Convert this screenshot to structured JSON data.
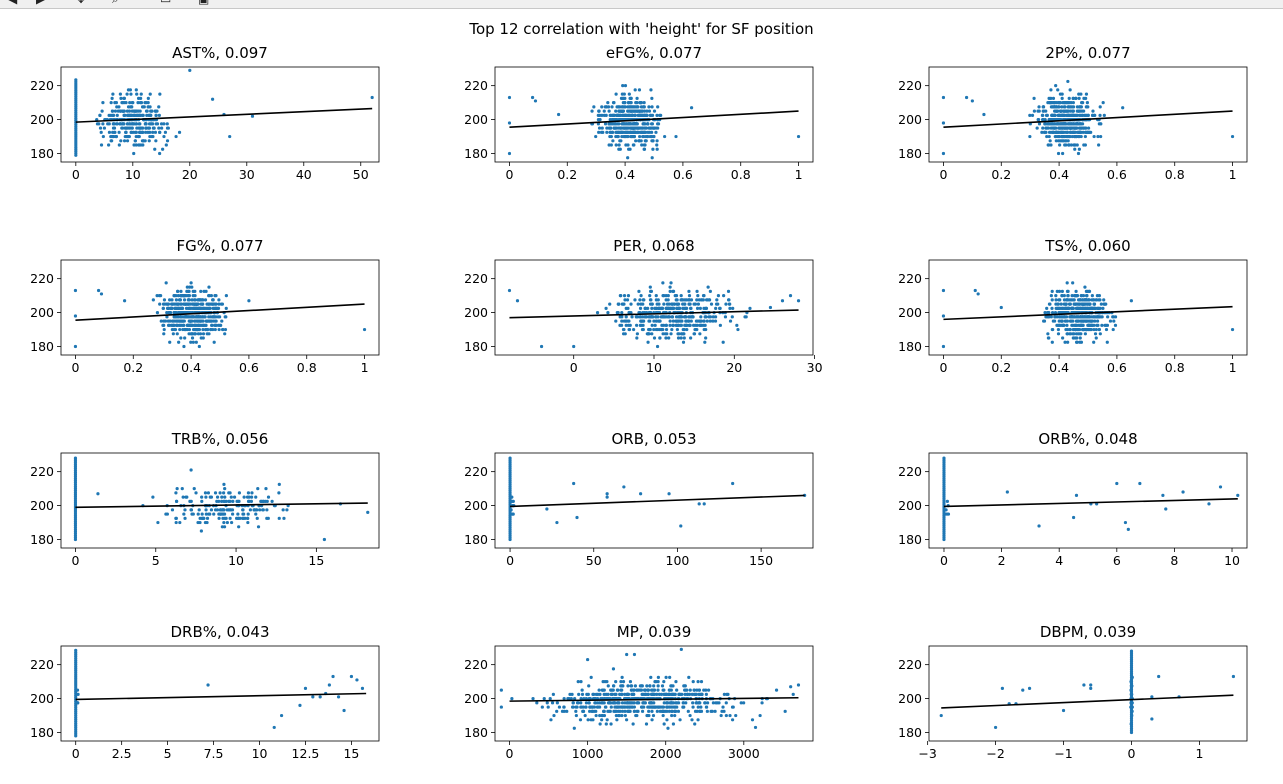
{
  "figure": {
    "suptitle": "Top 12 correlation with 'height' for SF position"
  },
  "toolbar": {
    "icons": [
      "arrow-back-icon",
      "arrow-forward-icon",
      "pan-icon",
      "zoom-icon",
      "subplots-icon",
      "save-icon"
    ]
  },
  "colors": {
    "points": "#1f77b4",
    "fit_line": "#000000"
  },
  "chart_data": [
    {
      "type": "scatter",
      "title": "AST%, 0.097",
      "xlim": [
        -2.6,
        53.2
      ],
      "ylim": [
        175,
        231
      ],
      "xticks": [
        0,
        10,
        20,
        30,
        40,
        50
      ],
      "yticks": [
        180,
        200,
        220
      ],
      "fit": [
        [
          0,
          198.5
        ],
        [
          52,
          206.5
        ]
      ],
      "zero_cluster": {
        "x": 0,
        "y_min": 179,
        "y_max": 224
      },
      "cluster": {
        "x_mean": 10,
        "x_sd": 4.2,
        "y_mean": 199,
        "y_sd": 10,
        "n": 330
      },
      "outliers": [
        [
          20,
          229
        ],
        [
          52,
          213
        ],
        [
          24,
          212
        ],
        [
          26,
          203
        ],
        [
          27,
          190
        ],
        [
          31,
          202
        ]
      ]
    },
    {
      "type": "scatter",
      "title": "eFG%, 0.077",
      "xlim": [
        -0.05,
        1.05
      ],
      "ylim": [
        175,
        231
      ],
      "xticks": [
        0.0,
        0.2,
        0.4,
        0.6,
        0.8,
        1.0
      ],
      "yticks": [
        180,
        200,
        220
      ],
      "fit": [
        [
          0,
          195.5
        ],
        [
          1,
          205
        ]
      ],
      "cluster": {
        "x_mean": 0.42,
        "x_sd": 0.07,
        "y_mean": 199,
        "y_sd": 10,
        "n": 520
      },
      "outliers": [
        [
          0,
          213
        ],
        [
          0,
          180
        ],
        [
          0,
          198
        ],
        [
          1.0,
          190
        ],
        [
          0.08,
          213
        ],
        [
          0.09,
          211
        ],
        [
          0.17,
          203
        ],
        [
          0.63,
          207
        ]
      ]
    },
    {
      "type": "scatter",
      "title": "2P%, 0.077",
      "xlim": [
        -0.05,
        1.05
      ],
      "ylim": [
        175,
        231
      ],
      "xticks": [
        0.0,
        0.2,
        0.4,
        0.6,
        0.8,
        1.0
      ],
      "yticks": [
        180,
        200,
        220
      ],
      "fit": [
        [
          0,
          195.5
        ],
        [
          1,
          205
        ]
      ],
      "cluster": {
        "x_mean": 0.43,
        "x_sd": 0.07,
        "y_mean": 199,
        "y_sd": 10,
        "n": 520
      },
      "outliers": [
        [
          0,
          213
        ],
        [
          0,
          180
        ],
        [
          0,
          198
        ],
        [
          1.0,
          190
        ],
        [
          0.08,
          213
        ],
        [
          0.1,
          211
        ],
        [
          0.14,
          203
        ],
        [
          0.62,
          207
        ]
      ]
    },
    {
      "type": "scatter",
      "title": "FG%, 0.077",
      "xlim": [
        -0.05,
        1.05
      ],
      "ylim": [
        175,
        231
      ],
      "xticks": [
        0.0,
        0.2,
        0.4,
        0.6,
        0.8,
        1.0
      ],
      "yticks": [
        180,
        200,
        220
      ],
      "fit": [
        [
          0,
          195.5
        ],
        [
          1,
          205
        ]
      ],
      "cluster": {
        "x_mean": 0.41,
        "x_sd": 0.07,
        "y_mean": 199,
        "y_sd": 10,
        "n": 520
      },
      "outliers": [
        [
          0,
          213
        ],
        [
          0,
          180
        ],
        [
          0,
          198
        ],
        [
          1.0,
          190
        ],
        [
          0.08,
          213
        ],
        [
          0.09,
          211
        ],
        [
          0.17,
          207
        ],
        [
          0.6,
          207
        ]
      ]
    },
    {
      "type": "scatter",
      "title": "PER, 0.068",
      "xlim": [
        -9.8,
        29.8
      ],
      "ylim": [
        175,
        231
      ],
      "xticks": [
        0,
        10,
        20,
        30
      ],
      "yticks": [
        180,
        200,
        220
      ],
      "fit": [
        [
          -8,
          197
        ],
        [
          28,
          201.5
        ]
      ],
      "cluster": {
        "x_mean": 12.5,
        "x_sd": 5,
        "y_mean": 199,
        "y_sd": 10,
        "n": 470
      },
      "outliers": [
        [
          -8,
          213
        ],
        [
          -7,
          207
        ],
        [
          -4,
          180
        ],
        [
          0,
          180
        ],
        [
          28,
          207
        ],
        [
          27,
          210
        ],
        [
          26,
          207
        ],
        [
          24.5,
          203
        ]
      ]
    },
    {
      "type": "scatter",
      "title": "TS%, 0.060",
      "xlim": [
        -0.05,
        1.05
      ],
      "ylim": [
        175,
        231
      ],
      "xticks": [
        0.0,
        0.2,
        0.4,
        0.6,
        0.8,
        1.0
      ],
      "yticks": [
        180,
        200,
        220
      ],
      "fit": [
        [
          0,
          196
        ],
        [
          1,
          203.5
        ]
      ],
      "cluster": {
        "x_mean": 0.47,
        "x_sd": 0.07,
        "y_mean": 199,
        "y_sd": 10,
        "n": 520
      },
      "outliers": [
        [
          0,
          213
        ],
        [
          0,
          180
        ],
        [
          0,
          198
        ],
        [
          1.0,
          190
        ],
        [
          0.11,
          213
        ],
        [
          0.12,
          211
        ],
        [
          0.2,
          203
        ],
        [
          0.65,
          207
        ]
      ]
    },
    {
      "type": "scatter",
      "title": "TRB%, 0.056",
      "xlim": [
        -0.9,
        18.9
      ],
      "ylim": [
        175,
        231
      ],
      "xticks": [
        0,
        5,
        10,
        15
      ],
      "yticks": [
        180,
        200,
        220
      ],
      "fit": [
        [
          0,
          199
        ],
        [
          18.2,
          201.5
        ]
      ],
      "zero_cluster": {
        "x": 0,
        "y_min": 180,
        "y_max": 229
      },
      "cluster": {
        "x_mean": 9.5,
        "x_sd": 2.4,
        "y_mean": 199,
        "y_sd": 8,
        "n": 200
      },
      "outliers": [
        [
          1.4,
          207
        ],
        [
          18.2,
          196
        ],
        [
          7.2,
          221
        ],
        [
          16.5,
          201
        ],
        [
          15.5,
          180
        ],
        [
          4.2,
          200
        ]
      ]
    },
    {
      "type": "scatter",
      "title": "ORB, 0.053",
      "xlim": [
        -9,
        181
      ],
      "ylim": [
        175,
        231
      ],
      "xticks": [
        0,
        50,
        100,
        150
      ],
      "yticks": [
        180,
        200,
        220
      ],
      "fit": [
        [
          0,
          199.5
        ],
        [
          176,
          206
        ]
      ],
      "zero_cluster": {
        "x": 0,
        "y_min": 180,
        "y_max": 229
      },
      "cluster": {
        "x_mean": 2,
        "x_sd": 1,
        "y_mean": 200,
        "y_sd": 8,
        "n": 10
      },
      "outliers": [
        [
          22,
          198
        ],
        [
          28,
          190
        ],
        [
          38,
          213
        ],
        [
          40,
          193
        ],
        [
          58,
          207
        ],
        [
          58,
          205
        ],
        [
          68,
          211
        ],
        [
          78,
          207
        ],
        [
          95,
          207
        ],
        [
          102,
          188
        ],
        [
          113,
          201
        ],
        [
          116,
          201
        ],
        [
          133,
          213
        ],
        [
          176,
          206
        ]
      ]
    },
    {
      "type": "scatter",
      "title": "ORB%, 0.048",
      "xlim": [
        -0.52,
        10.52
      ],
      "ylim": [
        175,
        231
      ],
      "xticks": [
        0,
        2,
        4,
        6,
        8,
        10
      ],
      "yticks": [
        180,
        200,
        220
      ],
      "fit": [
        [
          0,
          199.5
        ],
        [
          10.2,
          204
        ]
      ],
      "zero_cluster": {
        "x": 0,
        "y_min": 180,
        "y_max": 229
      },
      "cluster": {
        "x_mean": 0.1,
        "x_sd": 0.05,
        "y_mean": 200,
        "y_sd": 8,
        "n": 6
      },
      "outliers": [
        [
          2.2,
          208
        ],
        [
          3.3,
          188
        ],
        [
          4.5,
          193
        ],
        [
          4.6,
          206
        ],
        [
          5.1,
          201
        ],
        [
          5.3,
          201
        ],
        [
          6.0,
          213
        ],
        [
          6.3,
          190
        ],
        [
          6.4,
          186
        ],
        [
          6.8,
          213
        ],
        [
          7.6,
          206
        ],
        [
          7.7,
          198
        ],
        [
          8.3,
          208
        ],
        [
          9.2,
          201
        ],
        [
          9.6,
          211
        ],
        [
          10.2,
          206
        ]
      ]
    },
    {
      "type": "scatter",
      "title": "DRB%, 0.043",
      "xlim": [
        -0.8,
        16.5
      ],
      "ylim": [
        175,
        231
      ],
      "xticks": [
        0.0,
        2.5,
        5.0,
        7.5,
        10.0,
        12.5,
        15.0
      ],
      "yticks": [
        180,
        200,
        220
      ],
      "fit": [
        [
          0,
          199.5
        ],
        [
          15.8,
          203
        ]
      ],
      "zero_cluster": {
        "x": 0,
        "y_min": 178,
        "y_max": 229
      },
      "cluster": {
        "x_mean": 0.1,
        "x_sd": 0.05,
        "y_mean": 200,
        "y_sd": 8,
        "n": 6
      },
      "outliers": [
        [
          7.2,
          208
        ],
        [
          10.8,
          183
        ],
        [
          11.2,
          190
        ],
        [
          12.2,
          196
        ],
        [
          12.5,
          206
        ],
        [
          12.9,
          201
        ],
        [
          13.3,
          201
        ],
        [
          13.6,
          203
        ],
        [
          13.8,
          208
        ],
        [
          14.0,
          213
        ],
        [
          14.3,
          201
        ],
        [
          14.6,
          193
        ],
        [
          15.0,
          213
        ],
        [
          15.3,
          211
        ],
        [
          15.6,
          206
        ]
      ]
    },
    {
      "type": "scatter",
      "title": "MP, 0.039",
      "xlim": [
        -186,
        3886
      ],
      "ylim": [
        175,
        231
      ],
      "xticks": [
        0,
        1000,
        2000,
        3000
      ],
      "yticks": [
        180,
        200,
        220
      ],
      "fit": [
        [
          0,
          198.5
        ],
        [
          3700,
          200.5
        ]
      ],
      "cluster": {
        "x_mean": 1700,
        "x_sd": 850,
        "y_mean": 199,
        "y_sd": 8,
        "n": 620
      },
      "outliers": [
        [
          2200,
          229
        ],
        [
          1500,
          226
        ],
        [
          1600,
          226
        ],
        [
          1000,
          223
        ],
        [
          3700,
          208
        ],
        [
          3600,
          207
        ],
        [
          3150,
          183
        ]
      ]
    },
    {
      "type": "scatter",
      "title": "DBPM, 0.039",
      "xlim": [
        -2.98,
        1.7
      ],
      "ylim": [
        175,
        231
      ],
      "xticks": [
        -3,
        -2,
        -1,
        0,
        1
      ],
      "yticks": [
        180,
        200,
        220
      ],
      "fit": [
        [
          -2.8,
          194.5
        ],
        [
          1.5,
          202
        ]
      ],
      "zero_cluster": {
        "x": 0,
        "y_min": 180,
        "y_max": 229
      },
      "cluster": {
        "x_mean": 0,
        "x_sd": 0.01,
        "y_mean": 200,
        "y_sd": 9,
        "n": 30
      },
      "outliers": [
        [
          -2.8,
          190
        ],
        [
          -2.0,
          183
        ],
        [
          -1.9,
          206
        ],
        [
          -1.8,
          197
        ],
        [
          -1.7,
          197
        ],
        [
          -1.6,
          205
        ],
        [
          -1.5,
          206
        ],
        [
          -1.0,
          193
        ],
        [
          -0.7,
          208
        ],
        [
          -0.6,
          206
        ],
        [
          -0.6,
          208
        ],
        [
          0.3,
          201
        ],
        [
          0.3,
          188
        ],
        [
          0.4,
          213
        ],
        [
          0.7,
          201
        ],
        [
          1.5,
          213
        ]
      ]
    }
  ]
}
